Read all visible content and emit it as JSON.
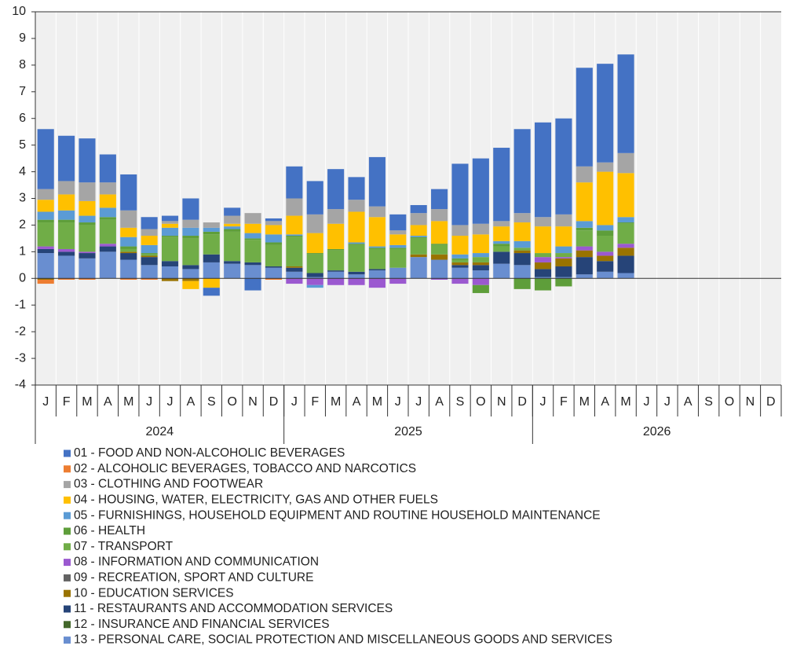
{
  "chart_data": {
    "type": "stacked_bar",
    "categories": [
      "J",
      "F",
      "M",
      "A",
      "M",
      "J",
      "J",
      "A",
      "S",
      "O",
      "N",
      "D",
      "J",
      "F",
      "M",
      "A",
      "M",
      "J",
      "J",
      "A",
      "S",
      "O",
      "N",
      "D",
      "J",
      "F",
      "M",
      "A",
      "M",
      "J",
      "J",
      "A",
      "S",
      "O",
      "N",
      "D"
    ],
    "years": [
      "2024",
      "2025",
      "2026"
    ],
    "ylim": [
      -4,
      10
    ],
    "yticks": [
      -4,
      -3,
      -2,
      -1,
      0,
      1,
      2,
      3,
      4,
      5,
      6,
      7,
      8,
      9,
      10
    ],
    "series": [
      {
        "name": "01 - FOOD AND NON-ALCOHOLIC BEVERAGES",
        "color": "#4472c4",
        "values": [
          2.25,
          1.7,
          1.65,
          1.05,
          1.35,
          0.45,
          0.2,
          0.8,
          -0.3,
          0.3,
          -0.45,
          0.1,
          1.2,
          1.25,
          1.5,
          0.85,
          1.85,
          0.6,
          0.3,
          0.75,
          2.3,
          2.45,
          2.75,
          3.15,
          3.55,
          3.6,
          3.7,
          3.7,
          3.7,
          null,
          null,
          null,
          null,
          null,
          null,
          null
        ]
      },
      {
        "name": "02 - ALCOHOLIC BEVERAGES, TOBACCO AND NARCOTICS",
        "color": "#ed7d31",
        "values": [
          -0.15,
          -0.05,
          -0.05,
          0,
          -0.05,
          -0.05,
          0,
          0,
          0,
          0,
          0,
          -0.05,
          0,
          0,
          0,
          0,
          0,
          0,
          0,
          0,
          0,
          0,
          0,
          0,
          0,
          0,
          0,
          0,
          0,
          null,
          null,
          null,
          null,
          null,
          null,
          null
        ]
      },
      {
        "name": "03 - CLOTHING AND FOOTWEAR",
        "color": "#a5a5a5",
        "values": [
          0.4,
          0.5,
          0.7,
          0.45,
          0.65,
          0.25,
          0.1,
          0.3,
          0.2,
          0.3,
          0.4,
          0.15,
          0.65,
          0.7,
          0.55,
          0.45,
          0.4,
          0.15,
          0.45,
          0.45,
          0.4,
          0.4,
          0.2,
          0.35,
          0.35,
          0.45,
          0.6,
          0.35,
          0.75,
          null,
          null,
          null,
          null,
          null,
          null,
          null
        ]
      },
      {
        "name": "04 - HOUSING, WATER, ELECTRICITY, GAS AND OTHER FUELS",
        "color": "#ffc000",
        "values": [
          0.45,
          0.6,
          0.55,
          0.5,
          0.35,
          0.35,
          0.15,
          -0.3,
          -0.35,
          0.1,
          0.35,
          0.35,
          0.7,
          0.75,
          0.95,
          1.15,
          1.1,
          0.4,
          0.4,
          0.85,
          0.7,
          0.7,
          0.55,
          0.7,
          1.0,
          0.75,
          1.45,
          2.0,
          1.65,
          null,
          null,
          null,
          null,
          null,
          null,
          null
        ]
      },
      {
        "name": "05 - FURNISHINGS, HOUSEHOLD EQUIPMENT AND ROUTINE HOUSEHOLD MAINTENANCE",
        "color": "#5b9bd5",
        "values": [
          0.3,
          0.35,
          0.25,
          0.35,
          0.35,
          0.3,
          0.3,
          0.3,
          0.15,
          0.1,
          0.2,
          0.3,
          0.05,
          -0.1,
          0,
          0.05,
          0.05,
          0.1,
          0.05,
          0,
          0.15,
          0.15,
          0.1,
          0.25,
          0,
          0.25,
          0.25,
          0.2,
          0.2,
          null,
          null,
          null,
          null,
          null,
          null,
          null
        ]
      },
      {
        "name": "06 - HEALTH",
        "color": "#5e9e3a",
        "values": [
          0.1,
          0.1,
          0.1,
          0.1,
          0.1,
          0.05,
          0.05,
          0.1,
          0.1,
          0.1,
          0.05,
          0.1,
          0.05,
          0.05,
          0.05,
          0.05,
          0.05,
          0.05,
          0.05,
          0.05,
          0.05,
          -0.3,
          0.1,
          -0.4,
          -0.45,
          -0.3,
          0.1,
          0.2,
          0.05,
          null,
          null,
          null,
          null,
          null,
          null,
          null
        ]
      },
      {
        "name": "07 - TRANSPORT",
        "color": "#70ad47",
        "values": [
          0.9,
          1.0,
          1.0,
          0.9,
          0.1,
          0.05,
          0.9,
          1.0,
          0.75,
          1.1,
          0.85,
          0.8,
          1.1,
          0.7,
          0.75,
          1.0,
          0.75,
          0.7,
          0.6,
          0.35,
          0.1,
          0.2,
          0.2,
          0.1,
          0.15,
          0.15,
          0.6,
          0.6,
          0.75,
          null,
          null,
          null,
          null,
          null,
          null,
          null
        ]
      },
      {
        "name": "08 - INFORMATION AND COMMUNICATION",
        "color": "#9b59d0",
        "values": [
          0.1,
          0.1,
          0.05,
          0.1,
          0,
          0,
          0,
          0,
          0,
          0,
          0,
          0,
          -0.2,
          -0.25,
          -0.25,
          -0.25,
          -0.35,
          -0.2,
          0,
          -0.05,
          -0.2,
          -0.25,
          0,
          0,
          0.2,
          0.05,
          0.15,
          0.15,
          0.15,
          null,
          null,
          null,
          null,
          null,
          null,
          null
        ]
      },
      {
        "name": "09 - RECREATION, SPORT AND CULTURE",
        "color": "#636363",
        "values": [
          0,
          0,
          0,
          0,
          0,
          0,
          0,
          0,
          0,
          0,
          0,
          0,
          0,
          0,
          0,
          0,
          0,
          0,
          0,
          0,
          0,
          0,
          0,
          0,
          0,
          0,
          0,
          0,
          0,
          null,
          null,
          null,
          null,
          null,
          null,
          null
        ]
      },
      {
        "name": "10 - EDUCATION SERVICES",
        "color": "#997300",
        "values": [
          -0.05,
          0,
          0,
          0,
          0.05,
          0.05,
          -0.1,
          -0.1,
          0,
          0,
          0,
          0,
          0.05,
          0,
          0,
          0,
          0,
          0,
          0.1,
          0.2,
          0.1,
          0.1,
          0,
          0.1,
          0.25,
          0.3,
          0.25,
          0.2,
          0.3,
          null,
          null,
          null,
          null,
          null,
          null,
          null
        ]
      },
      {
        "name": "11 - RESTAURANTS AND ACCOMMODATION SERVICES",
        "color": "#264478",
        "values": [
          0.15,
          0.15,
          0.2,
          0.2,
          0.25,
          0.3,
          0.2,
          0.15,
          0.3,
          0.1,
          0.1,
          0.05,
          0.15,
          0.15,
          0.05,
          0.1,
          0.05,
          0,
          0,
          0,
          0.1,
          0.2,
          0.45,
          0.45,
          0.3,
          0.4,
          0.65,
          0.4,
          0.65,
          null,
          null,
          null,
          null,
          null,
          null,
          null
        ]
      },
      {
        "name": "12 - INSURANCE AND FINANCIAL SERVICES",
        "color": "#43682b",
        "values": [
          0,
          0,
          0,
          0,
          0,
          0,
          0,
          0,
          0,
          0,
          0,
          0,
          0,
          0,
          0,
          0,
          0,
          0,
          0,
          0,
          0,
          0,
          0,
          0,
          0,
          0,
          0,
          0,
          0,
          null,
          null,
          null,
          null,
          null,
          null,
          null
        ]
      },
      {
        "name": "13 - PERSONAL CARE, SOCIAL PROTECTION AND MISCELLANEOUS GOODS AND SERVICES",
        "color": "#698ed0",
        "values": [
          0.95,
          0.85,
          0.75,
          1.0,
          0.7,
          0.5,
          0.45,
          0.35,
          0.6,
          0.55,
          0.5,
          0.4,
          0.25,
          0.05,
          0.25,
          0.15,
          0.3,
          0.4,
          0.8,
          0.7,
          0.4,
          0.3,
          0.55,
          0.5,
          0.05,
          0.05,
          0.15,
          0.25,
          0.2,
          null,
          null,
          null,
          null,
          null,
          null,
          null
        ]
      }
    ]
  }
}
